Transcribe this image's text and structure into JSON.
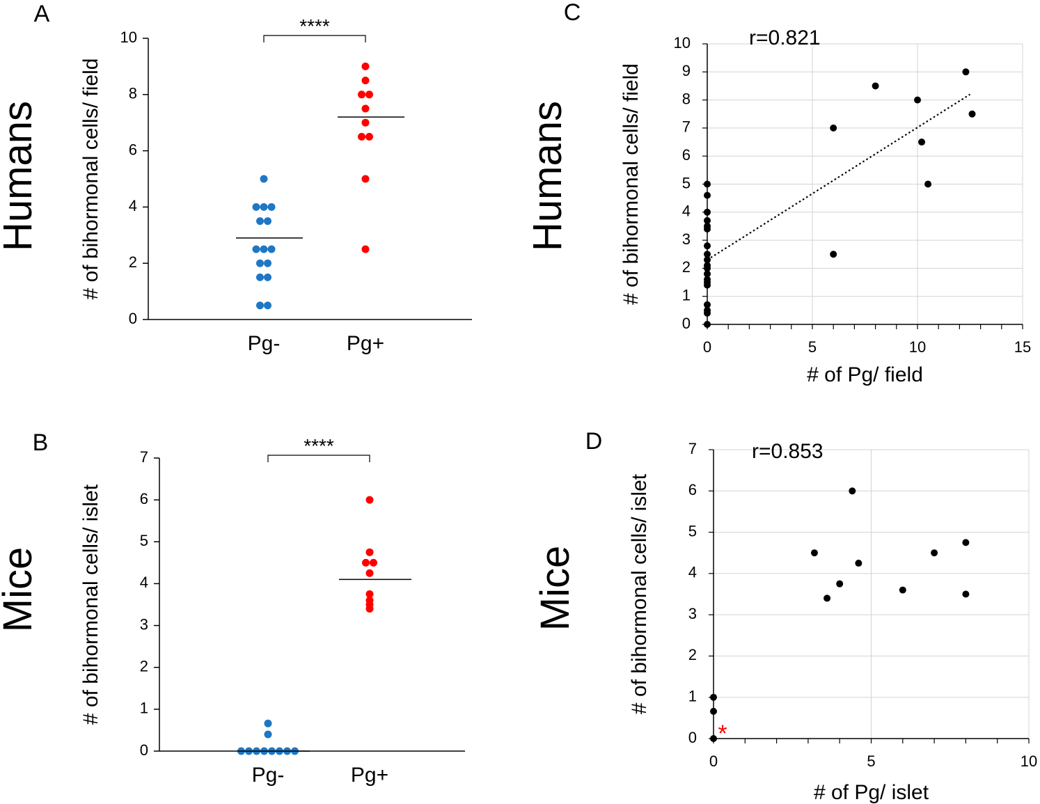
{
  "colors": {
    "pg_minus": "#1f77c4",
    "pg_plus": "#ff0000",
    "scatter": "#000000",
    "grid": "#d3d3d3",
    "asterisk": "#ff0000"
  },
  "row_labels": {
    "top": "Humans",
    "bottom": "Mice"
  },
  "chart_data": [
    {
      "id": "A",
      "panel_label": "A",
      "type": "scatter",
      "title": "",
      "xlabel": "",
      "ylabel": "# of bihormonal cells/ field",
      "categories": [
        "Pg-",
        "Pg+"
      ],
      "ylim": [
        0,
        10
      ],
      "yticks": [
        0,
        2,
        4,
        6,
        8,
        10
      ],
      "series": [
        {
          "name": "Pg-",
          "color": "#1f77c4",
          "values": [
            5,
            4,
            4,
            4,
            3.5,
            3.5,
            2.5,
            2.5,
            2.5,
            2,
            2,
            1.5,
            1.5,
            0.5,
            0.5
          ],
          "mean": 2.9
        },
        {
          "name": "Pg+",
          "color": "#ff0000",
          "values": [
            9,
            8.5,
            8,
            8,
            7.5,
            7,
            6.5,
            6.5,
            5,
            2.5
          ],
          "mean": 7.2
        }
      ],
      "significance": "****"
    },
    {
      "id": "B",
      "panel_label": "B",
      "type": "scatter",
      "title": "",
      "xlabel": "",
      "ylabel": "# of bihormonal cells/ islet",
      "categories": [
        "Pg-",
        "Pg+"
      ],
      "ylim": [
        0,
        7
      ],
      "yticks": [
        0,
        1,
        2,
        3,
        4,
        5,
        6,
        7
      ],
      "series": [
        {
          "name": "Pg-",
          "color": "#1f77c4",
          "values": [
            0.66,
            0.4,
            0,
            0,
            0,
            0,
            0,
            0,
            0,
            0
          ],
          "mean": 0
        },
        {
          "name": "Pg+",
          "color": "#ff0000",
          "values": [
            6,
            4.75,
            4.5,
            4.5,
            4.25,
            3.75,
            3.6,
            3.5,
            3.4
          ],
          "mean": 4.1
        }
      ],
      "significance": "****"
    },
    {
      "id": "C",
      "panel_label": "C",
      "type": "scatter",
      "title": "",
      "annotation": "r=0.821",
      "xlabel": "# of Pg/ field",
      "ylabel": "# of bihormonal cells/ field",
      "xlim": [
        0,
        15
      ],
      "ylim": [
        0,
        10
      ],
      "xticks": [
        0,
        5,
        10,
        15
      ],
      "yticks": [
        0,
        1,
        2,
        3,
        4,
        5,
        6,
        7,
        8,
        9,
        10
      ],
      "grid": true,
      "points": [
        [
          0,
          5
        ],
        [
          0,
          4.6
        ],
        [
          0,
          4
        ],
        [
          0,
          3.7
        ],
        [
          0,
          3.5
        ],
        [
          0,
          3.4
        ],
        [
          0,
          2.8
        ],
        [
          0,
          2.5
        ],
        [
          0,
          2.3
        ],
        [
          0,
          2.1
        ],
        [
          0,
          2
        ],
        [
          0,
          1.8
        ],
        [
          0,
          1.6
        ],
        [
          0,
          1.5
        ],
        [
          0,
          1.4
        ],
        [
          0,
          0.7
        ],
        [
          0,
          0.5
        ],
        [
          0,
          0.4
        ],
        [
          0,
          0
        ],
        [
          6,
          7
        ],
        [
          6,
          2.5
        ],
        [
          8,
          8.5
        ],
        [
          10,
          8
        ],
        [
          10.2,
          6.5
        ],
        [
          10.5,
          5
        ],
        [
          12.3,
          9
        ],
        [
          12.6,
          7.5
        ]
      ],
      "trendline": {
        "x0": 0,
        "y0": 2.3,
        "x1": 12.5,
        "y1": 8.2,
        "style": "dotted"
      }
    },
    {
      "id": "D",
      "panel_label": "D",
      "type": "scatter",
      "title": "",
      "annotation": "r=0.853",
      "xlabel": "# of Pg/ islet",
      "ylabel": "# of bihormonal cells/ islet",
      "xlim": [
        0,
        10
      ],
      "ylim": [
        0,
        7
      ],
      "xticks": [
        0,
        5,
        10
      ],
      "yticks": [
        0,
        1,
        2,
        3,
        4,
        5,
        6,
        7
      ],
      "grid": true,
      "points": [
        [
          0,
          1
        ],
        [
          0,
          0.66
        ],
        [
          0,
          0
        ],
        [
          3.2,
          4.5
        ],
        [
          3.6,
          3.4
        ],
        [
          4,
          3.75
        ],
        [
          4.4,
          6
        ],
        [
          4.6,
          4.25
        ],
        [
          6,
          3.6
        ],
        [
          7,
          4.5
        ],
        [
          8,
          4.75
        ],
        [
          8,
          3.5
        ]
      ],
      "marker_asterisk": "*"
    }
  ]
}
